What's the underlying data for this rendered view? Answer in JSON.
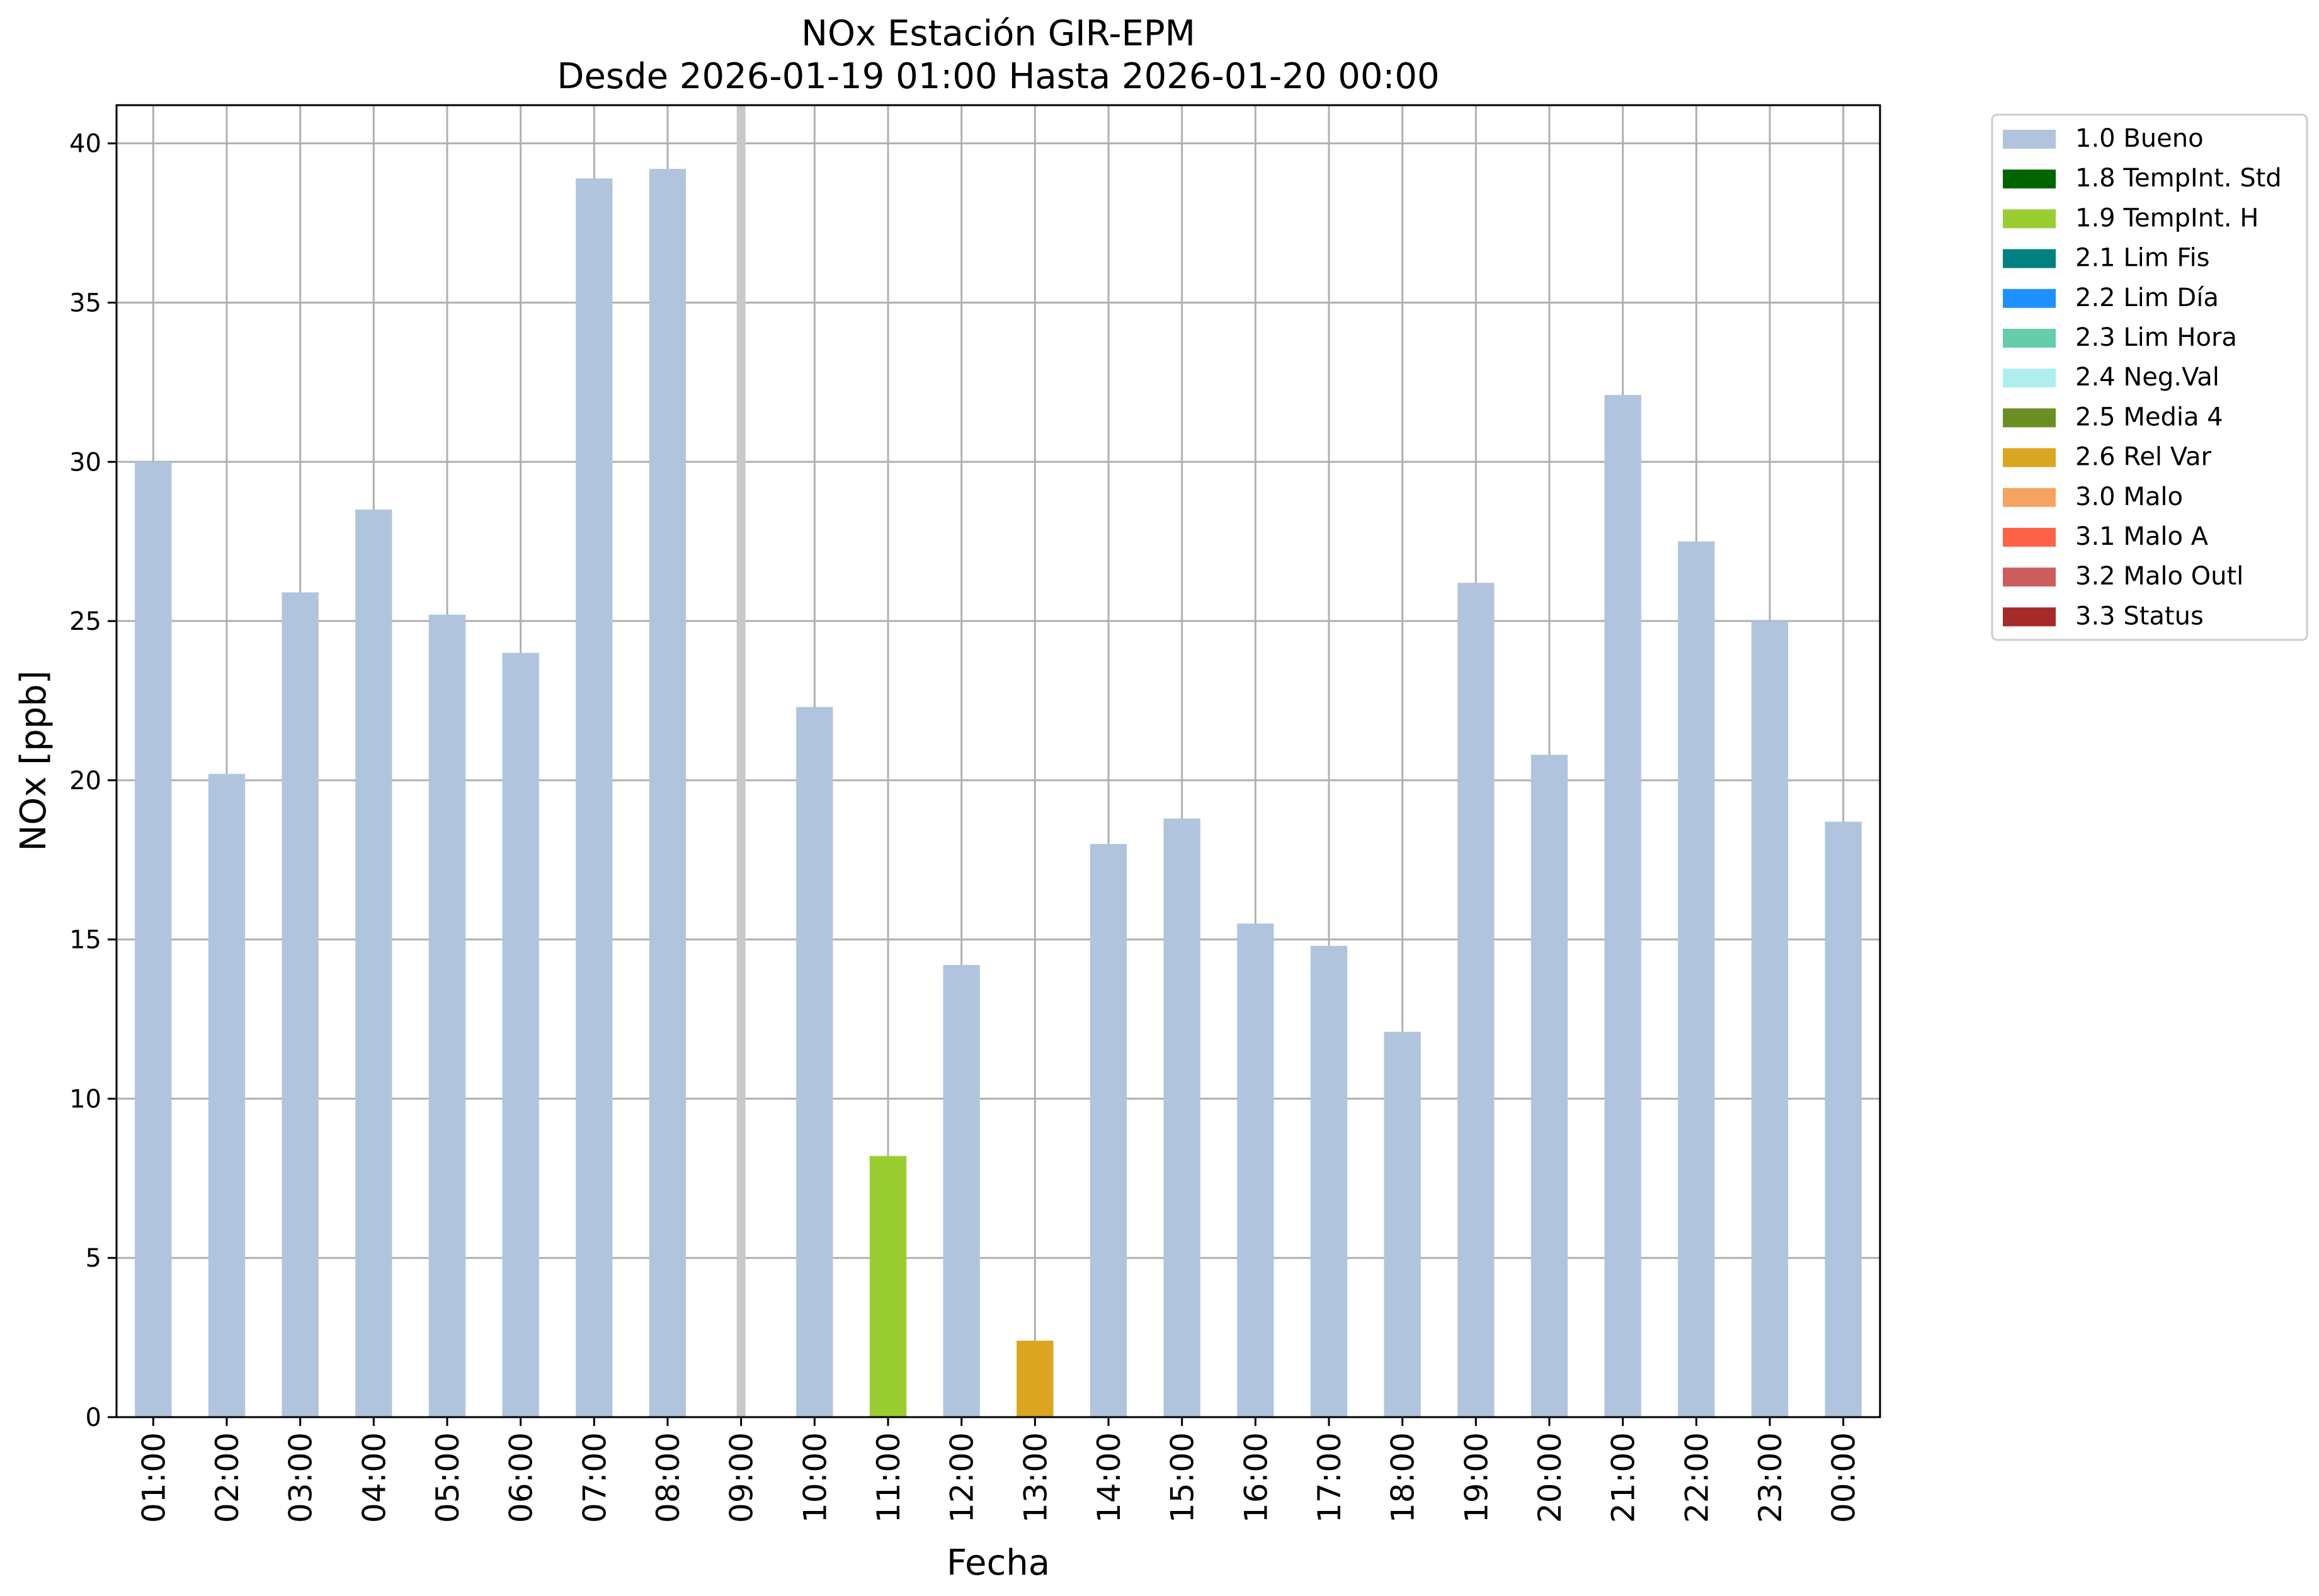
{
  "chart_data": {
    "type": "bar",
    "title": "NOx Estación GIR-EPM",
    "subtitle": "Desde 2026-01-19 01:00 Hasta 2026-01-20 00:00",
    "xlabel": "Fecha",
    "ylabel": "NOx [ppb]",
    "ylim": [
      0,
      41.2
    ],
    "yticks": [
      0,
      5,
      10,
      15,
      20,
      25,
      30,
      35,
      40
    ],
    "grid": true,
    "legend_position": "outside-right-top",
    "categories": [
      "01:00",
      "02:00",
      "03:00",
      "04:00",
      "05:00",
      "06:00",
      "07:00",
      "08:00",
      "09:00",
      "10:00",
      "11:00",
      "12:00",
      "13:00",
      "14:00",
      "15:00",
      "16:00",
      "17:00",
      "18:00",
      "19:00",
      "20:00",
      "21:00",
      "22:00",
      "23:00",
      "00:00"
    ],
    "values": [
      30.0,
      20.2,
      25.9,
      28.5,
      25.2,
      24.0,
      38.9,
      39.2,
      null,
      22.3,
      8.2,
      14.2,
      2.4,
      18.0,
      18.8,
      15.5,
      14.8,
      12.1,
      26.2,
      20.8,
      32.1,
      27.5,
      25.0,
      18.7
    ],
    "flags": [
      "1.0 Bueno",
      "1.0 Bueno",
      "1.0 Bueno",
      "1.0 Bueno",
      "1.0 Bueno",
      "1.0 Bueno",
      "1.0 Bueno",
      "1.0 Bueno",
      null,
      "1.0 Bueno",
      "1.9 TempInt. H",
      "1.0 Bueno",
      "2.6 Rel Var",
      "1.0 Bueno",
      "1.0 Bueno",
      "1.0 Bueno",
      "1.0 Bueno",
      "1.0 Bueno",
      "1.0 Bueno",
      "1.0 Bueno",
      "1.0 Bueno",
      "1.0 Bueno",
      "1.0 Bueno",
      "1.0 Bueno"
    ],
    "missing_marker_index": 8,
    "legend": [
      {
        "name": "1.0 Bueno",
        "color": "#b0c4de"
      },
      {
        "name": "1.8 TempInt. Std",
        "color": "#006400"
      },
      {
        "name": "1.9 TempInt. H",
        "color": "#9acd32"
      },
      {
        "name": "2.1 Lim Fis",
        "color": "#008080"
      },
      {
        "name": "2.2 Lim Día",
        "color": "#1e90ff"
      },
      {
        "name": "2.3 Lim Hora",
        "color": "#66cdaa"
      },
      {
        "name": "2.4 Neg.Val",
        "color": "#afeeee"
      },
      {
        "name": "2.5 Media 4",
        "color": "#6b8e23"
      },
      {
        "name": "2.6 Rel Var",
        "color": "#daa520"
      },
      {
        "name": "3.0 Malo",
        "color": "#f4a460"
      },
      {
        "name": "3.1 Malo A",
        "color": "#ff6347"
      },
      {
        "name": "3.2 Malo Outl",
        "color": "#cd5c5c"
      },
      {
        "name": "3.3 Status",
        "color": "#a52a2a"
      }
    ]
  }
}
